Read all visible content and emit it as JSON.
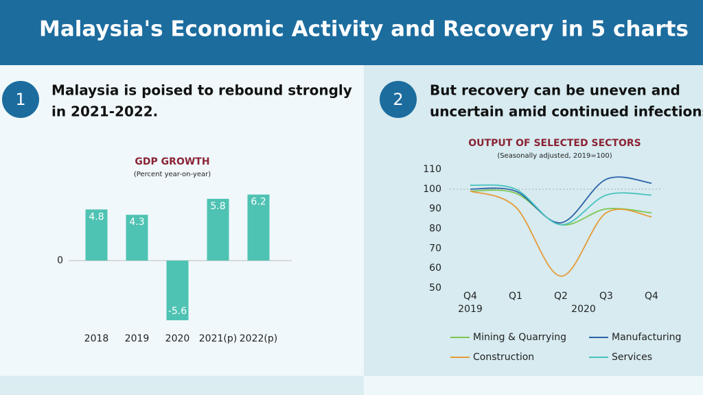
{
  "header": {
    "title": "Malaysia's Economic Activity and Recovery in 5 charts"
  },
  "panels": [
    {
      "number": "1",
      "heading": [
        "Malaysia is poised to rebound strongly",
        "in 2021-2022."
      ]
    },
    {
      "number": "2",
      "heading": [
        "But recovery can be uneven and",
        "uncertain amid continued infections."
      ]
    }
  ],
  "chart_data": [
    {
      "type": "bar",
      "title": "GDP GROWTH",
      "subtitle": "(Percent year-on-year)",
      "categories": [
        "2018",
        "2019",
        "2020",
        "2021(p)",
        "2022(p)"
      ],
      "values": [
        4.8,
        4.3,
        -5.6,
        5.8,
        6.2
      ],
      "color": "#4fc3b3",
      "ylim": [
        -6.5,
        6.5
      ],
      "yticks": [
        0
      ]
    },
    {
      "type": "line",
      "title": "OUTPUT OF SELECTED SECTORS",
      "subtitle": "(Seasonally adjusted, 2019=100)",
      "categories": [
        "Q4",
        "Q1",
        "Q2",
        "Q3",
        "Q4"
      ],
      "x_groups": [
        "2019",
        "2020"
      ],
      "ylim": [
        50,
        110
      ],
      "yticks": [
        50,
        60,
        70,
        80,
        90,
        100,
        110
      ],
      "reference_line": 100,
      "series": [
        {
          "name": "Mining & Quarrying",
          "color": "#7cc653",
          "values": [
            99,
            98,
            82,
            90,
            88
          ]
        },
        {
          "name": "Manufacturing",
          "color": "#2a62a8",
          "values": [
            100,
            99,
            83,
            105,
            103
          ]
        },
        {
          "name": "Construction",
          "color": "#e69a36",
          "values": [
            99,
            91,
            56,
            88,
            86
          ]
        },
        {
          "name": "Services",
          "color": "#48c2bf",
          "values": [
            102,
            100,
            82,
            97,
            97
          ]
        }
      ]
    }
  ]
}
